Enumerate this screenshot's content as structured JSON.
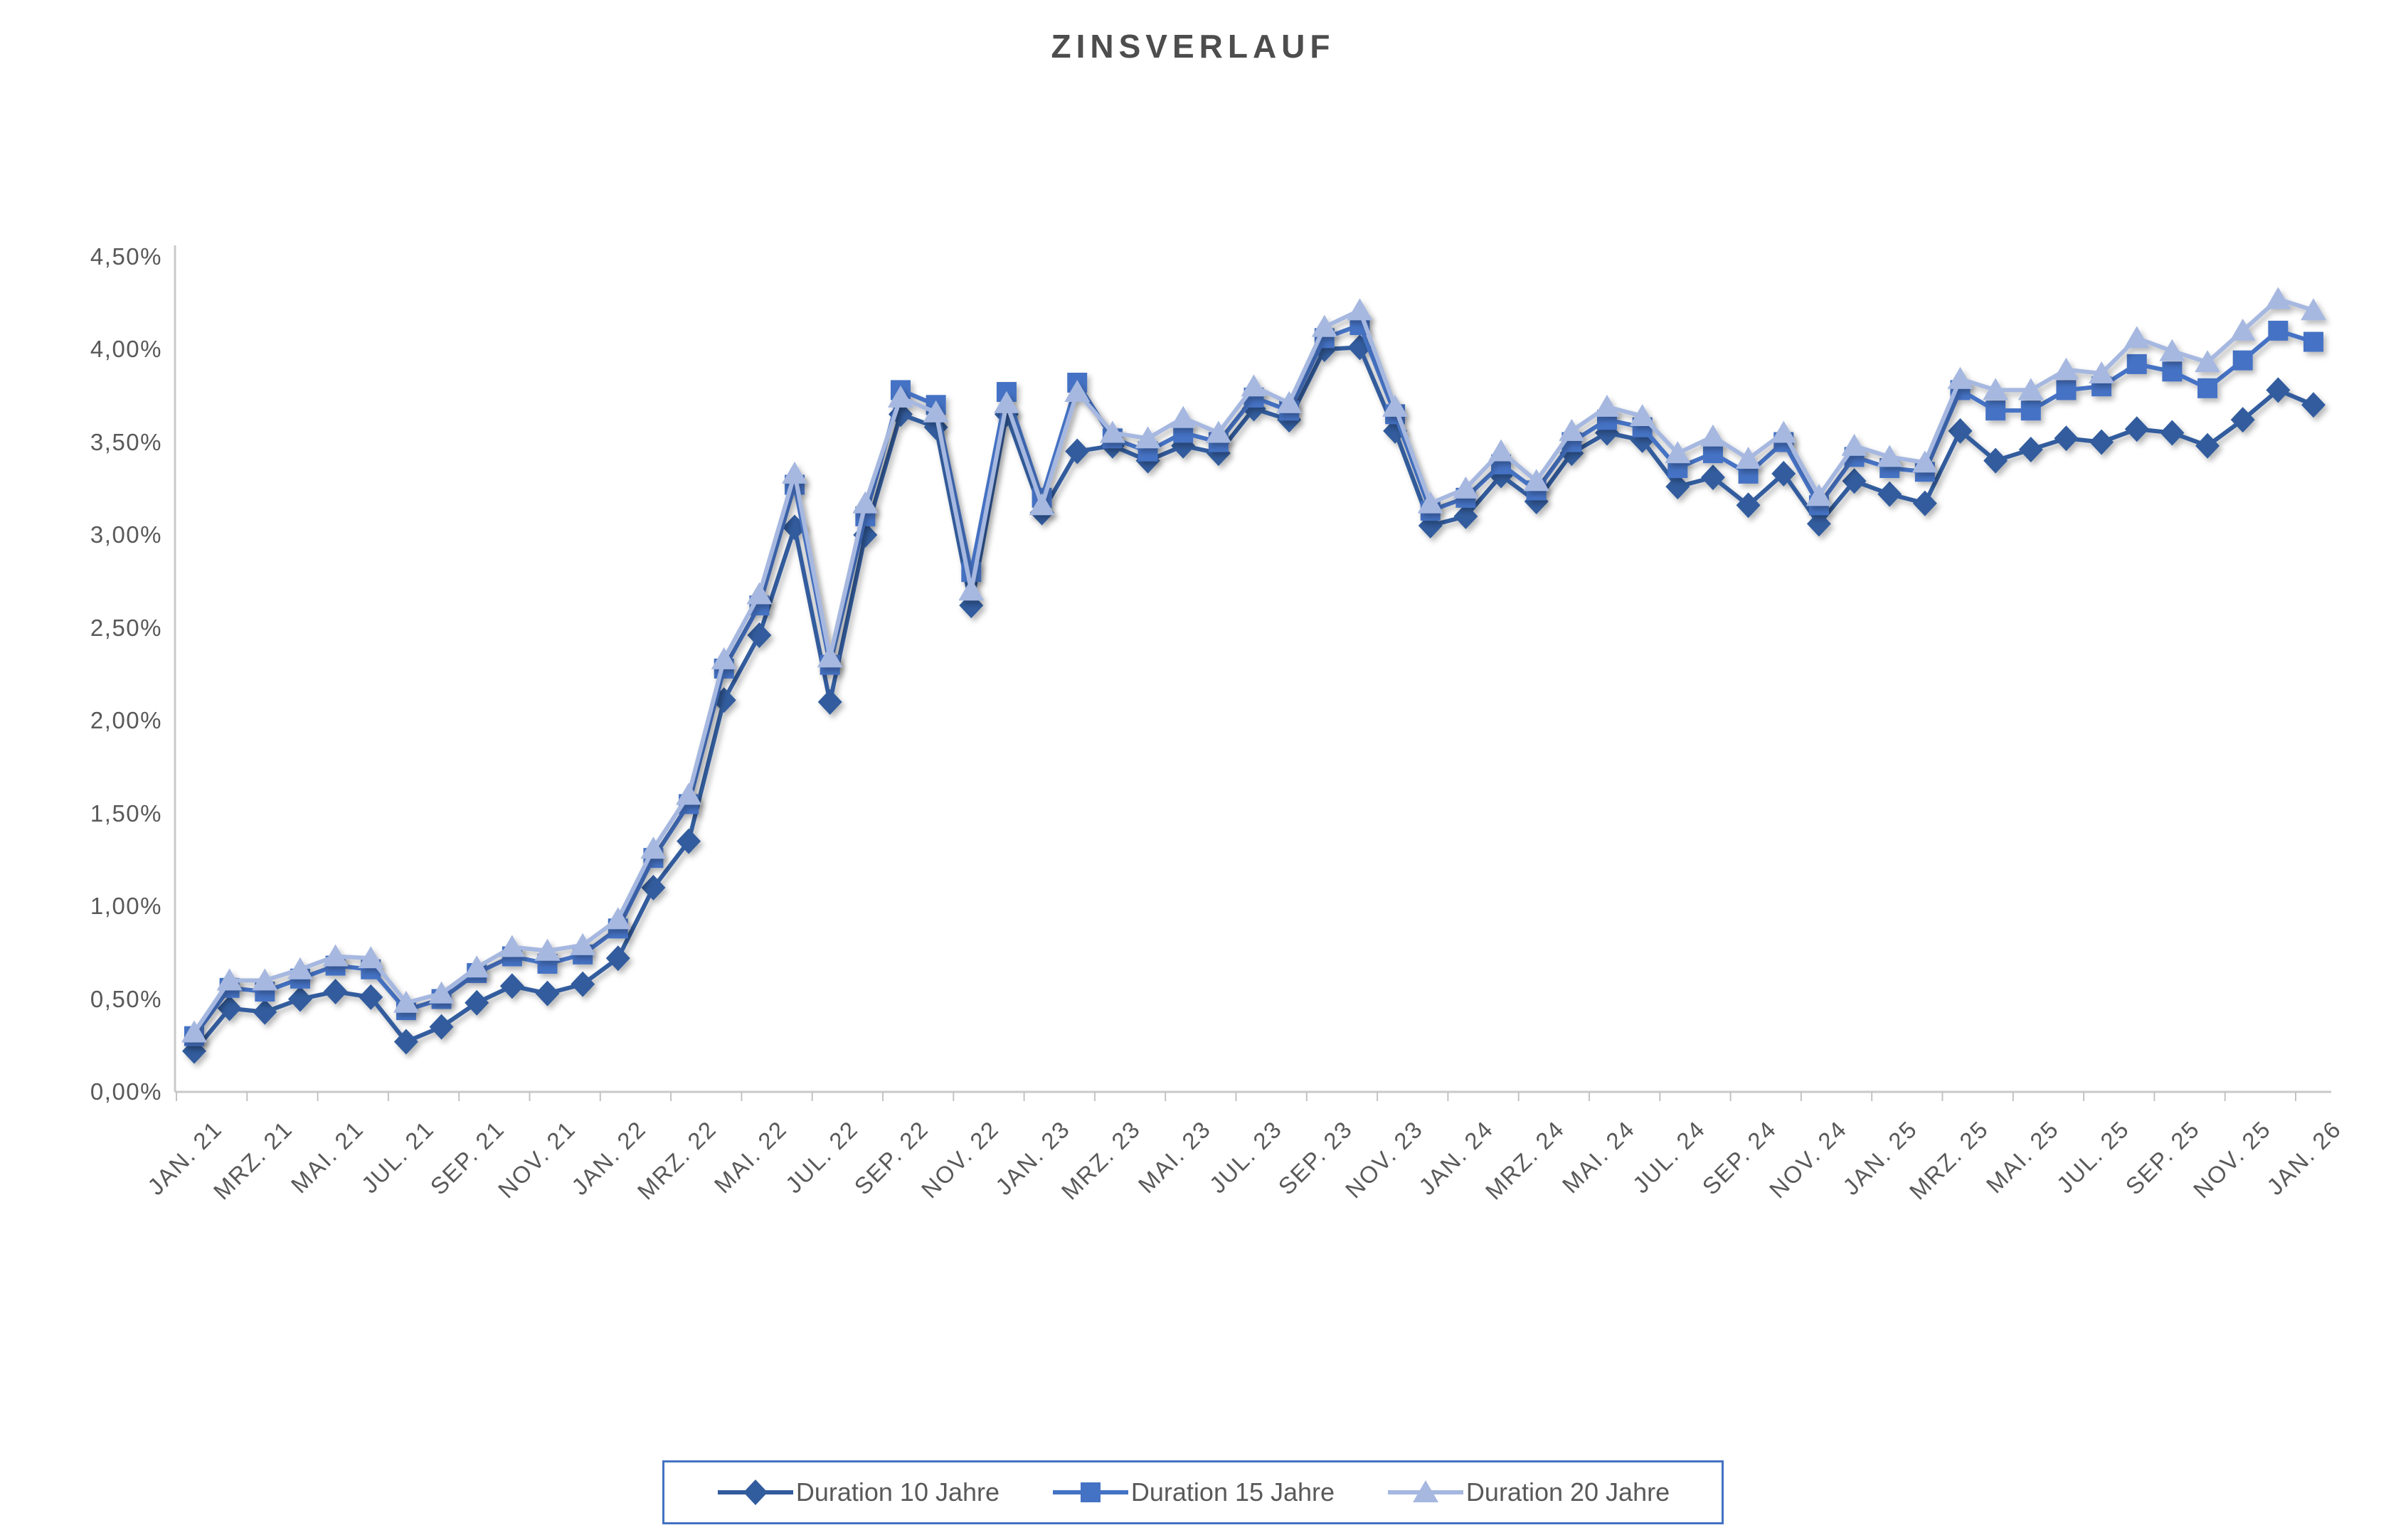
{
  "title": "ZINSVERLAUF",
  "y_axis": {
    "tick_labels": [
      "0,00%",
      "0,50%",
      "1,00%",
      "1,50%",
      "2,00%",
      "2,50%",
      "3,00%",
      "3,50%",
      "4,00%",
      "4,50%"
    ],
    "min": 0,
    "max": 4.5,
    "step": 0.5
  },
  "x_axis": {
    "tick_labels": [
      "JAN. 21",
      "MRZ. 21",
      "MAI. 21",
      "JUL. 21",
      "SEP. 21",
      "NOV. 21",
      "JAN. 22",
      "MRZ. 22",
      "MAI. 22",
      "JUL. 22",
      "SEP. 22",
      "NOV. 22",
      "JAN. 23",
      "MRZ. 23",
      "MAI. 23",
      "JUL. 23",
      "SEP. 23",
      "NOV. 23",
      "JAN. 24",
      "MRZ. 24",
      "MAI. 24",
      "JUL. 24",
      "SEP. 24",
      "NOV. 24",
      "JAN. 25",
      "MRZ. 25",
      "MAI. 25",
      "JUL. 25",
      "SEP. 25",
      "NOV. 25",
      "JAN. 26"
    ]
  },
  "legend": {
    "entries": [
      {
        "label": "Duration 10 Jahre",
        "marker": "diamond",
        "color": "#315c9d"
      },
      {
        "label": "Duration 15 Jahre",
        "marker": "square",
        "color": "#4472c4"
      },
      {
        "label": "Duration 20 Jahre",
        "marker": "triangle",
        "color": "#a6b8e0"
      }
    ],
    "border_color": "#4472c4"
  },
  "chart_data": {
    "type": "line",
    "title": "ZINSVERLAUF",
    "xlabel": "",
    "ylabel": "",
    "ylim": [
      0,
      4.5
    ],
    "grid": false,
    "legend_position": "bottom",
    "categories": [
      "JAN. 21",
      "FEB. 21",
      "MRZ. 21",
      "APR. 21",
      "MAI. 21",
      "JUN. 21",
      "JUL. 21",
      "AUG. 21",
      "SEP. 21",
      "OKT. 21",
      "NOV. 21",
      "DEZ. 21",
      "JAN. 22",
      "FEB. 22",
      "MRZ. 22",
      "APR. 22",
      "MAI. 22",
      "JUN. 22",
      "JUL. 22",
      "AUG. 22",
      "SEP. 22",
      "OKT. 22",
      "NOV. 22",
      "DEZ. 22",
      "JAN. 23",
      "FEB. 23",
      "MRZ. 23",
      "APR. 23",
      "MAI. 23",
      "JUN. 23",
      "JUL. 23",
      "AUG. 23",
      "SEP. 23",
      "OKT. 23",
      "NOV. 23",
      "DEZ. 23",
      "JAN. 24",
      "FEB. 24",
      "MRZ. 24",
      "APR. 24",
      "MAI. 24",
      "JUN. 24",
      "JUL. 24",
      "AUG. 24",
      "SEP. 24",
      "OKT. 24",
      "NOV. 24",
      "DEZ. 24",
      "JAN. 25",
      "FEB. 25",
      "MRZ. 25",
      "APR. 25",
      "MAI. 25",
      "JUN. 25",
      "JUL. 25",
      "AUG. 25",
      "SEP. 25",
      "OKT. 25",
      "NOV. 25",
      "DEZ. 25",
      "JAN. 26"
    ],
    "series": [
      {
        "name": "Duration 10 Jahre",
        "marker": "diamond",
        "color": "#315c9d",
        "values": [
          0.22,
          0.45,
          0.43,
          0.5,
          0.54,
          0.51,
          0.27,
          0.35,
          0.48,
          0.57,
          0.53,
          0.58,
          0.72,
          1.1,
          1.35,
          2.11,
          2.46,
          3.04,
          2.1,
          3.0,
          3.65,
          3.58,
          2.62,
          3.65,
          3.12,
          3.45,
          3.48,
          3.4,
          3.48,
          3.44,
          3.68,
          3.62,
          4.0,
          4.01,
          3.56,
          3.05,
          3.1,
          3.32,
          3.18,
          3.44,
          3.55,
          3.51,
          3.26,
          3.31,
          3.16,
          3.33,
          3.06,
          3.29,
          3.22,
          3.17,
          3.56,
          3.4,
          3.46,
          3.52,
          3.5,
          3.57,
          3.55,
          3.48,
          3.62,
          3.78,
          3.7
        ]
      },
      {
        "name": "Duration 15 Jahre",
        "marker": "square",
        "color": "#4472c4",
        "values": [
          0.3,
          0.56,
          0.54,
          0.61,
          0.68,
          0.66,
          0.44,
          0.5,
          0.64,
          0.73,
          0.69,
          0.74,
          0.88,
          1.26,
          1.55,
          2.28,
          2.62,
          3.27,
          2.3,
          3.1,
          3.78,
          3.7,
          2.8,
          3.77,
          3.2,
          3.82,
          3.52,
          3.45,
          3.55,
          3.5,
          3.74,
          3.67,
          4.06,
          4.13,
          3.65,
          3.13,
          3.2,
          3.38,
          3.24,
          3.5,
          3.62,
          3.58,
          3.36,
          3.44,
          3.33,
          3.5,
          3.16,
          3.42,
          3.36,
          3.34,
          3.78,
          3.67,
          3.67,
          3.78,
          3.8,
          3.92,
          3.88,
          3.79,
          3.94,
          4.1,
          4.04
        ]
      },
      {
        "name": "Duration 20 Jahre",
        "marker": "triangle",
        "color": "#a6b8e0",
        "values": [
          0.32,
          0.6,
          0.6,
          0.66,
          0.73,
          0.72,
          0.48,
          0.53,
          0.67,
          0.78,
          0.76,
          0.79,
          0.93,
          1.31,
          1.6,
          2.33,
          2.68,
          3.33,
          2.34,
          3.17,
          3.74,
          3.66,
          2.7,
          3.71,
          3.16,
          3.77,
          3.55,
          3.52,
          3.63,
          3.55,
          3.8,
          3.71,
          4.12,
          4.21,
          3.69,
          3.17,
          3.25,
          3.45,
          3.29,
          3.56,
          3.69,
          3.64,
          3.44,
          3.53,
          3.41,
          3.55,
          3.21,
          3.48,
          3.42,
          3.39,
          3.84,
          3.78,
          3.78,
          3.89,
          3.87,
          4.06,
          3.99,
          3.93,
          4.1,
          4.27,
          4.21
        ]
      }
    ]
  },
  "colors": {
    "axis_line": "#c9c9c9",
    "tick_mark": "#c3c3c3",
    "label_text": "#595959",
    "title_text": "#4d4d4d"
  }
}
